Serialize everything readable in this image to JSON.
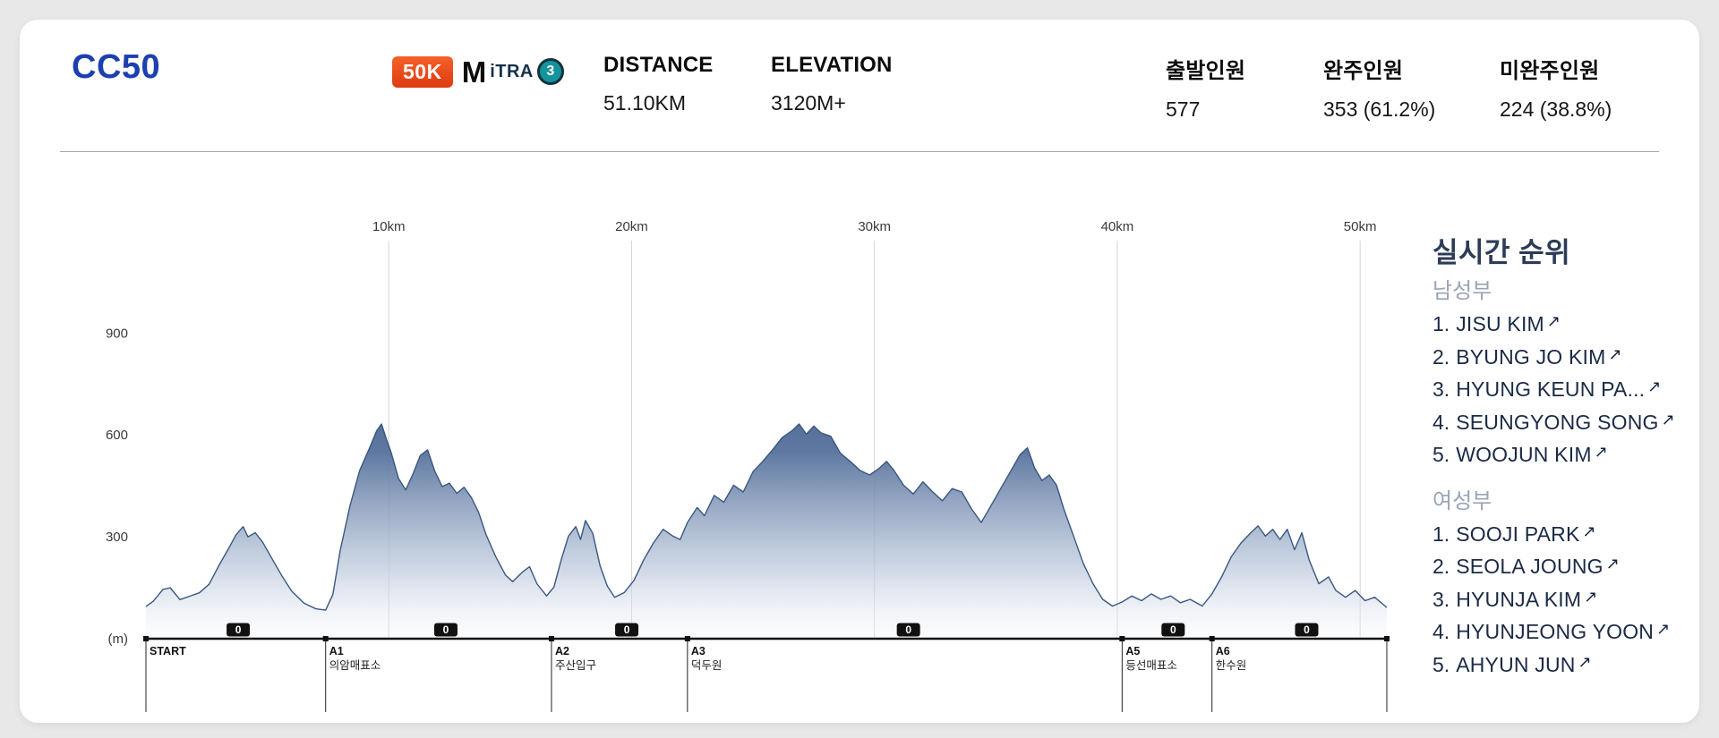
{
  "icons": {
    "external_link": "↗"
  },
  "header": {
    "race_title": "CC50",
    "category_badge": "50K",
    "itra": {
      "logo": "M",
      "brand": "iTRA",
      "points": "3"
    },
    "stats": [
      {
        "label": "DISTANCE",
        "value": "51.10KM"
      },
      {
        "label": "ELEVATION",
        "value": "3120M+"
      },
      {
        "label": "출발인원",
        "value": "577"
      },
      {
        "label": "완주인원",
        "value": "353 (61.2%)"
      },
      {
        "label": "미완주인원",
        "value": "224 (38.8%)"
      }
    ]
  },
  "chart_data": {
    "type": "area",
    "title": "",
    "xlabel": "",
    "ylabel": "(m)",
    "x_ticks": [
      "10km",
      "20km",
      "30km",
      "40km",
      "50km"
    ],
    "y_ticks": [
      300,
      600,
      900
    ],
    "xlim": [
      0,
      51.1
    ],
    "ylim": [
      0,
      1000
    ],
    "grid": "vertical",
    "legend": "none",
    "line_color": "#3a5680",
    "area_gradient_top": "#2f4e7e",
    "area_gradient_bottom": "#f2f5fa",
    "profile": [
      [
        0,
        95
      ],
      [
        0.3,
        110
      ],
      [
        0.7,
        145
      ],
      [
        1,
        150
      ],
      [
        1.4,
        115
      ],
      [
        1.8,
        125
      ],
      [
        2.2,
        135
      ],
      [
        2.6,
        160
      ],
      [
        3,
        215
      ],
      [
        3.4,
        265
      ],
      [
        3.7,
        305
      ],
      [
        4,
        330
      ],
      [
        4.2,
        300
      ],
      [
        4.5,
        312
      ],
      [
        4.8,
        285
      ],
      [
        5.2,
        235
      ],
      [
        5.6,
        185
      ],
      [
        6,
        140
      ],
      [
        6.5,
        105
      ],
      [
        7,
        88
      ],
      [
        7.4,
        84
      ],
      [
        7.7,
        130
      ],
      [
        8,
        260
      ],
      [
        8.4,
        390
      ],
      [
        8.8,
        495
      ],
      [
        9.2,
        560
      ],
      [
        9.5,
        612
      ],
      [
        9.7,
        632
      ],
      [
        9.9,
        588
      ],
      [
        10.1,
        548
      ],
      [
        10.4,
        472
      ],
      [
        10.7,
        438
      ],
      [
        11,
        486
      ],
      [
        11.3,
        540
      ],
      [
        11.6,
        556
      ],
      [
        11.9,
        492
      ],
      [
        12.2,
        448
      ],
      [
        12.5,
        458
      ],
      [
        12.8,
        428
      ],
      [
        13.1,
        446
      ],
      [
        13.4,
        416
      ],
      [
        13.7,
        372
      ],
      [
        14,
        308
      ],
      [
        14.4,
        242
      ],
      [
        14.8,
        188
      ],
      [
        15.1,
        168
      ],
      [
        15.5,
        196
      ],
      [
        15.8,
        212
      ],
      [
        16.1,
        162
      ],
      [
        16.5,
        126
      ],
      [
        16.8,
        152
      ],
      [
        17.1,
        232
      ],
      [
        17.4,
        302
      ],
      [
        17.7,
        330
      ],
      [
        17.9,
        292
      ],
      [
        18.1,
        348
      ],
      [
        18.4,
        310
      ],
      [
        18.7,
        215
      ],
      [
        19,
        155
      ],
      [
        19.3,
        122
      ],
      [
        19.7,
        136
      ],
      [
        20.1,
        172
      ],
      [
        20.5,
        232
      ],
      [
        20.9,
        282
      ],
      [
        21.3,
        322
      ],
      [
        21.7,
        302
      ],
      [
        22,
        292
      ],
      [
        22.3,
        342
      ],
      [
        22.7,
        386
      ],
      [
        23,
        362
      ],
      [
        23.4,
        422
      ],
      [
        23.8,
        402
      ],
      [
        24.2,
        452
      ],
      [
        24.6,
        432
      ],
      [
        25,
        492
      ],
      [
        25.4,
        522
      ],
      [
        25.8,
        556
      ],
      [
        26.2,
        592
      ],
      [
        26.6,
        612
      ],
      [
        26.9,
        632
      ],
      [
        27.2,
        602
      ],
      [
        27.5,
        626
      ],
      [
        27.8,
        606
      ],
      [
        28.2,
        596
      ],
      [
        28.6,
        546
      ],
      [
        29,
        522
      ],
      [
        29.4,
        496
      ],
      [
        29.8,
        482
      ],
      [
        30.2,
        502
      ],
      [
        30.5,
        522
      ],
      [
        30.8,
        496
      ],
      [
        31.2,
        452
      ],
      [
        31.6,
        426
      ],
      [
        32,
        462
      ],
      [
        32.4,
        432
      ],
      [
        32.8,
        406
      ],
      [
        33.2,
        442
      ],
      [
        33.6,
        432
      ],
      [
        34,
        382
      ],
      [
        34.4,
        342
      ],
      [
        34.8,
        392
      ],
      [
        35.2,
        442
      ],
      [
        35.6,
        492
      ],
      [
        36,
        542
      ],
      [
        36.3,
        562
      ],
      [
        36.6,
        502
      ],
      [
        36.9,
        466
      ],
      [
        37.2,
        482
      ],
      [
        37.5,
        452
      ],
      [
        37.8,
        382
      ],
      [
        38.2,
        302
      ],
      [
        38.6,
        222
      ],
      [
        39,
        162
      ],
      [
        39.4,
        116
      ],
      [
        39.8,
        96
      ],
      [
        40.2,
        108
      ],
      [
        40.6,
        126
      ],
      [
        41,
        112
      ],
      [
        41.4,
        132
      ],
      [
        41.8,
        116
      ],
      [
        42.2,
        126
      ],
      [
        42.6,
        106
      ],
      [
        43,
        116
      ],
      [
        43.5,
        96
      ],
      [
        43.9,
        132
      ],
      [
        44.3,
        182
      ],
      [
        44.7,
        242
      ],
      [
        45.1,
        282
      ],
      [
        45.5,
        312
      ],
      [
        45.8,
        332
      ],
      [
        46.1,
        302
      ],
      [
        46.4,
        322
      ],
      [
        46.7,
        292
      ],
      [
        47,
        322
      ],
      [
        47.3,
        262
      ],
      [
        47.6,
        312
      ],
      [
        47.9,
        232
      ],
      [
        48.3,
        162
      ],
      [
        48.7,
        182
      ],
      [
        49,
        142
      ],
      [
        49.4,
        122
      ],
      [
        49.8,
        142
      ],
      [
        50.2,
        112
      ],
      [
        50.6,
        122
      ],
      [
        51.1,
        92
      ]
    ],
    "checkpoints": [
      {
        "id": "START",
        "name": "",
        "km": 0
      },
      {
        "id": "A1",
        "name": "의암매표소",
        "km": 7.4
      },
      {
        "id": "A2",
        "name": "주산입구",
        "km": 16.7
      },
      {
        "id": "A3",
        "name": "덕두원",
        "km": 22.3
      },
      {
        "id": "A5",
        "name": "등선매표소",
        "km": 40.2
      },
      {
        "id": "A6",
        "name": "한수원",
        "km": 43.9
      }
    ],
    "segment_counts": [
      {
        "km": 3.8,
        "count": 0
      },
      {
        "km": 12.35,
        "count": 0
      },
      {
        "km": 19.8,
        "count": 0
      },
      {
        "km": 31.4,
        "count": 0
      },
      {
        "km": 42.3,
        "count": 0
      },
      {
        "km": 47.8,
        "count": 0
      }
    ]
  },
  "rankings": {
    "title": "실시간 순위",
    "groups": [
      {
        "label": "남성부",
        "entries": [
          {
            "rank": "1.",
            "name": "JISU KIM"
          },
          {
            "rank": "2.",
            "name": "BYUNG JO KIM"
          },
          {
            "rank": "3.",
            "name": "HYUNG KEUN PA..."
          },
          {
            "rank": "4.",
            "name": "SEUNGYONG SONG"
          },
          {
            "rank": "5.",
            "name": "WOOJUN KIM"
          }
        ]
      },
      {
        "label": "여성부",
        "entries": [
          {
            "rank": "1.",
            "name": "SOOJI PARK"
          },
          {
            "rank": "2.",
            "name": "SEOLA JOUNG"
          },
          {
            "rank": "3.",
            "name": "HYUNJA KIM"
          },
          {
            "rank": "4.",
            "name": "HYUNJEONG YOON"
          },
          {
            "rank": "5.",
            "name": "AHYUN JUN"
          }
        ]
      }
    ]
  }
}
